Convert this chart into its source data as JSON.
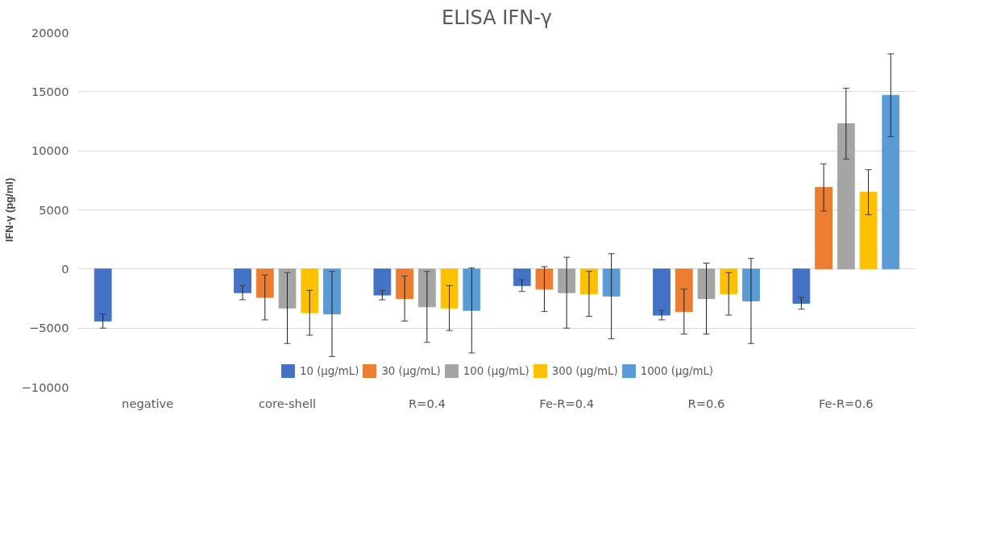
{
  "chart_data": {
    "type": "bar",
    "title": "ELISA IFN-γ",
    "ylabel": "IFN-γ (pg/ml)",
    "categories": [
      "negative",
      "core-shell",
      "R=0.4",
      "Fe-R=0.4",
      "R=0.6",
      "Fe-R=0.6"
    ],
    "series": [
      {
        "name": "10 (µg/mL)",
        "color": "#4472c4",
        "values": [
          -4400,
          -2000,
          -2200,
          -1400,
          -3900,
          -2900
        ],
        "errors": [
          600,
          600,
          400,
          500,
          400,
          500
        ]
      },
      {
        "name": "30 (µg/mL)",
        "color": "#ed7d31",
        "values": [
          null,
          -2400,
          -2500,
          -1700,
          -3600,
          6900
        ],
        "errors": [
          null,
          1900,
          1900,
          1900,
          1900,
          2000
        ]
      },
      {
        "name": "100 (µg/mL)",
        "color": "#a5a5a5",
        "values": [
          null,
          -3300,
          -3200,
          -2000,
          -2500,
          12300
        ],
        "errors": [
          null,
          3000,
          3000,
          3000,
          3000,
          3000
        ]
      },
      {
        "name": "300 (µg/mL)",
        "color": "#ffc000",
        "values": [
          null,
          -3700,
          -3300,
          -2100,
          -2100,
          6500
        ],
        "errors": [
          null,
          1900,
          1900,
          1900,
          1800,
          1900
        ]
      },
      {
        "name": "1000 (µg/mL)",
        "color": "#5b9bd5",
        "values": [
          null,
          -3800,
          -3500,
          -2300,
          -2700,
          14700
        ],
        "errors": [
          null,
          3600,
          3600,
          3600,
          3600,
          3500
        ]
      }
    ],
    "ylim": [
      -10000,
      20000
    ],
    "yticks": [
      -10000,
      -5000,
      0,
      5000,
      10000,
      15000,
      20000
    ],
    "grid": "y",
    "legend": "bottom"
  }
}
